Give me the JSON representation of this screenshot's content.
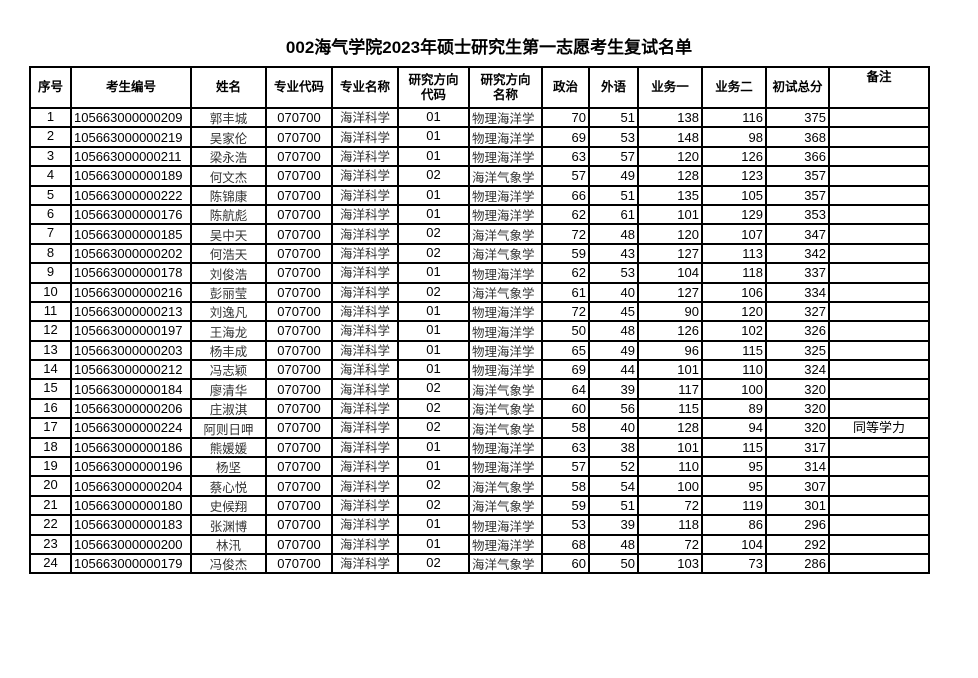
{
  "title": "002海气学院2023年硕士研究生第一志愿考生复试名单",
  "headers": [
    "序号",
    "考生编号",
    "姓名",
    "专业代码",
    "专业名称",
    "研究方向\n代码",
    "研究方向\n名称",
    "政治",
    "外语",
    "业务一",
    "业务二",
    "初试总分",
    "备注"
  ],
  "rows": [
    [
      "1",
      "105663000000209",
      "郭丰城",
      "070700",
      "海洋科学",
      "01",
      "物理海洋学",
      "70",
      "51",
      "138",
      "116",
      "375",
      ""
    ],
    [
      "2",
      "105663000000219",
      "吴家伦",
      "070700",
      "海洋科学",
      "01",
      "物理海洋学",
      "69",
      "53",
      "148",
      "98",
      "368",
      ""
    ],
    [
      "3",
      "105663000000211",
      "梁永浩",
      "070700",
      "海洋科学",
      "01",
      "物理海洋学",
      "63",
      "57",
      "120",
      "126",
      "366",
      ""
    ],
    [
      "4",
      "105663000000189",
      "何文杰",
      "070700",
      "海洋科学",
      "02",
      "海洋气象学",
      "57",
      "49",
      "128",
      "123",
      "357",
      ""
    ],
    [
      "5",
      "105663000000222",
      "陈锦康",
      "070700",
      "海洋科学",
      "01",
      "物理海洋学",
      "66",
      "51",
      "135",
      "105",
      "357",
      ""
    ],
    [
      "6",
      "105663000000176",
      "陈航彪",
      "070700",
      "海洋科学",
      "01",
      "物理海洋学",
      "62",
      "61",
      "101",
      "129",
      "353",
      ""
    ],
    [
      "7",
      "105663000000185",
      "吴中天",
      "070700",
      "海洋科学",
      "02",
      "海洋气象学",
      "72",
      "48",
      "120",
      "107",
      "347",
      ""
    ],
    [
      "8",
      "105663000000202",
      "何浩天",
      "070700",
      "海洋科学",
      "02",
      "海洋气象学",
      "59",
      "43",
      "127",
      "113",
      "342",
      ""
    ],
    [
      "9",
      "105663000000178",
      "刘俊浩",
      "070700",
      "海洋科学",
      "01",
      "物理海洋学",
      "62",
      "53",
      "104",
      "118",
      "337",
      ""
    ],
    [
      "10",
      "105663000000216",
      "彭丽莹",
      "070700",
      "海洋科学",
      "02",
      "海洋气象学",
      "61",
      "40",
      "127",
      "106",
      "334",
      ""
    ],
    [
      "11",
      "105663000000213",
      "刘逸凡",
      "070700",
      "海洋科学",
      "01",
      "物理海洋学",
      "72",
      "45",
      "90",
      "120",
      "327",
      ""
    ],
    [
      "12",
      "105663000000197",
      "王海龙",
      "070700",
      "海洋科学",
      "01",
      "物理海洋学",
      "50",
      "48",
      "126",
      "102",
      "326",
      ""
    ],
    [
      "13",
      "105663000000203",
      "杨丰成",
      "070700",
      "海洋科学",
      "01",
      "物理海洋学",
      "65",
      "49",
      "96",
      "115",
      "325",
      ""
    ],
    [
      "14",
      "105663000000212",
      "冯志颖",
      "070700",
      "海洋科学",
      "01",
      "物理海洋学",
      "69",
      "44",
      "101",
      "110",
      "324",
      ""
    ],
    [
      "15",
      "105663000000184",
      "廖清华",
      "070700",
      "海洋科学",
      "02",
      "海洋气象学",
      "64",
      "39",
      "117",
      "100",
      "320",
      ""
    ],
    [
      "16",
      "105663000000206",
      "庄淑淇",
      "070700",
      "海洋科学",
      "02",
      "海洋气象学",
      "60",
      "56",
      "115",
      "89",
      "320",
      ""
    ],
    [
      "17",
      "105663000000224",
      "阿则日呷",
      "070700",
      "海洋科学",
      "02",
      "海洋气象学",
      "58",
      "40",
      "128",
      "94",
      "320",
      "同等学力"
    ],
    [
      "18",
      "105663000000186",
      "熊媛媛",
      "070700",
      "海洋科学",
      "01",
      "物理海洋学",
      "63",
      "38",
      "101",
      "115",
      "317",
      ""
    ],
    [
      "19",
      "105663000000196",
      "杨坚",
      "070700",
      "海洋科学",
      "01",
      "物理海洋学",
      "57",
      "52",
      "110",
      "95",
      "314",
      ""
    ],
    [
      "20",
      "105663000000204",
      "蔡心悦",
      "070700",
      "海洋科学",
      "02",
      "海洋气象学",
      "58",
      "54",
      "100",
      "95",
      "307",
      ""
    ],
    [
      "21",
      "105663000000180",
      "史候翔",
      "070700",
      "海洋科学",
      "02",
      "海洋气象学",
      "59",
      "51",
      "72",
      "119",
      "301",
      ""
    ],
    [
      "22",
      "105663000000183",
      "张渊博",
      "070700",
      "海洋科学",
      "01",
      "物理海洋学",
      "53",
      "39",
      "118",
      "86",
      "296",
      ""
    ],
    [
      "23",
      "105663000000200",
      "林汛",
      "070700",
      "海洋科学",
      "01",
      "物理海洋学",
      "68",
      "48",
      "72",
      "104",
      "292",
      ""
    ],
    [
      "24",
      "105663000000179",
      "冯俊杰",
      "070700",
      "海洋科学",
      "02",
      "海洋气象学",
      "60",
      "50",
      "103",
      "73",
      "286",
      ""
    ]
  ]
}
